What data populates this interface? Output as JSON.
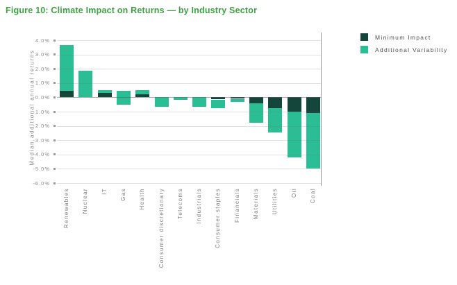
{
  "figure_title": "Figure 10: Climate Impact on Returns — by Industry Sector",
  "colors": {
    "title_green": "#3ea043",
    "minimum_impact": "#14463c",
    "additional_variability": "#2bbd94",
    "gridline": "rgba(120,120,120,0.22)",
    "zero_line": "rgba(90,90,90,0.5)",
    "axis_text": "#8a8a8a"
  },
  "legend": [
    {
      "label": "Minimum Impact",
      "color": "#14463c"
    },
    {
      "label": "Additional Variability",
      "color": "#2bbd94"
    }
  ],
  "chart_data": {
    "type": "bar",
    "stacked": true,
    "title": "Figure 10: Climate Impact on Returns — by Industry Sector",
    "ylabel": "Median additional annual returns",
    "ylim": [
      -6.0,
      4.0
    ],
    "grid": true,
    "legend_position": "top-right",
    "ytick_values": [
      4,
      3,
      2,
      1,
      0,
      -1,
      -2,
      -3,
      -4,
      -5,
      -6
    ],
    "ytick_labels": [
      "4.0%",
      "3.0%",
      "2.0%",
      "1.0%",
      "-0.0%",
      "-1.0%",
      "-2.0%",
      "-3.0%",
      "-4.0%",
      "-5.0%",
      "-6.0%"
    ],
    "categories": [
      "Renewables",
      "Nuclear",
      "IT",
      "Gas",
      "Health",
      "Consumer discretionary",
      "Telecoms",
      "Industrials",
      "Consumer staples",
      "Financials",
      "Materials",
      "Utilities",
      "Oil",
      "Coal"
    ],
    "series": [
      {
        "name": "Minimum Impact",
        "color": "#14463c",
        "segments": [
          [
            0,
            0.45
          ],
          [
            0,
            0
          ],
          [
            0,
            0.3
          ],
          [
            0,
            0
          ],
          [
            0,
            0.2
          ],
          [
            0,
            0
          ],
          [
            0,
            0
          ],
          [
            0,
            0
          ],
          [
            0,
            -0.15
          ],
          [
            0,
            -0.1
          ],
          [
            0,
            -0.4
          ],
          [
            0,
            -0.75
          ],
          [
            0,
            -1.0
          ],
          [
            0,
            -1.1
          ]
        ]
      },
      {
        "name": "Additional Variability",
        "color": "#2bbd94",
        "segments": [
          [
            0.45,
            3.65
          ],
          [
            0,
            1.85
          ],
          [
            0.3,
            0.5
          ],
          [
            -0.5,
            0.45
          ],
          [
            0.2,
            0.5
          ],
          [
            0,
            -0.65
          ],
          [
            0,
            -0.2
          ],
          [
            0,
            -0.65
          ],
          [
            -0.15,
            -0.75
          ],
          [
            -0.1,
            -0.3
          ],
          [
            -0.4,
            -1.8
          ],
          [
            -0.75,
            -2.45
          ],
          [
            -1.0,
            -4.2
          ],
          [
            -1.1,
            -5.0
          ]
        ]
      }
    ]
  }
}
